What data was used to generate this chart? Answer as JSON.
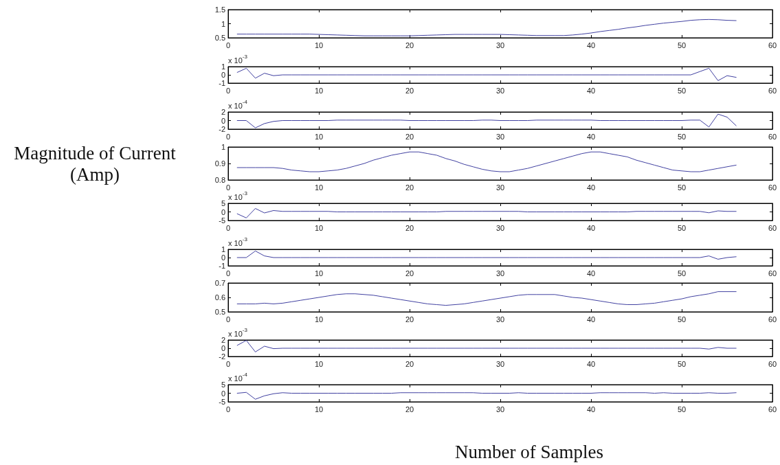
{
  "chart_data": [
    {
      "type": "line",
      "x": [
        1,
        2,
        3,
        4,
        5,
        6,
        7,
        8,
        9,
        10,
        11,
        12,
        13,
        14,
        15,
        16,
        17,
        18,
        19,
        20,
        21,
        22,
        23,
        24,
        25,
        26,
        27,
        28,
        29,
        30,
        31,
        32,
        33,
        34,
        35,
        36,
        37,
        38,
        39,
        40,
        41,
        42,
        43,
        44,
        45,
        46,
        47,
        48,
        49,
        50,
        51,
        52,
        53,
        54,
        55,
        56
      ],
      "values": [
        0.63,
        0.63,
        0.63,
        0.63,
        0.63,
        0.63,
        0.63,
        0.63,
        0.63,
        0.62,
        0.61,
        0.6,
        0.59,
        0.58,
        0.57,
        0.57,
        0.57,
        0.57,
        0.57,
        0.57,
        0.58,
        0.59,
        0.6,
        0.61,
        0.62,
        0.62,
        0.62,
        0.62,
        0.62,
        0.62,
        0.61,
        0.6,
        0.59,
        0.58,
        0.58,
        0.58,
        0.58,
        0.6,
        0.63,
        0.67,
        0.72,
        0.76,
        0.8,
        0.85,
        0.89,
        0.94,
        0.98,
        1.02,
        1.05,
        1.08,
        1.12,
        1.14,
        1.15,
        1.14,
        1.12,
        1.11
      ],
      "color": "#4040a0",
      "xlim": [
        0,
        60
      ],
      "xticks": [
        0,
        10,
        20,
        30,
        40,
        50,
        60
      ],
      "ylim": [
        0.5,
        1.5
      ],
      "yticks": [
        0.5,
        1,
        1.5
      ]
    },
    {
      "type": "line",
      "x": [
        1,
        2,
        3,
        4,
        5,
        6,
        7,
        8,
        9,
        10,
        11,
        12,
        13,
        14,
        15,
        16,
        17,
        18,
        19,
        20,
        21,
        22,
        23,
        24,
        25,
        26,
        27,
        28,
        29,
        30,
        31,
        32,
        33,
        34,
        35,
        36,
        37,
        38,
        39,
        40,
        41,
        42,
        43,
        44,
        45,
        46,
        47,
        48,
        49,
        50,
        51,
        52,
        53,
        54,
        55,
        56
      ],
      "values": [
        0.3,
        0.8,
        -0.4,
        0.2,
        -0.1,
        0,
        0,
        0,
        0,
        0,
        0,
        0,
        0,
        0,
        0,
        0,
        0,
        0,
        0,
        0,
        0,
        0,
        0,
        0,
        0,
        0,
        0,
        0,
        0,
        0,
        0,
        0,
        0,
        0,
        0,
        0,
        0,
        0,
        0,
        0,
        0,
        0,
        0,
        0,
        0,
        0,
        0,
        0,
        0,
        0,
        0,
        0.4,
        0.8,
        -0.7,
        -0.1,
        -0.3
      ],
      "color": "#4040a0",
      "xlim": [
        0,
        60
      ],
      "xticks": [
        0,
        10,
        20,
        30,
        40,
        50,
        60
      ],
      "ylim": [
        -1,
        1
      ],
      "yticks": [
        -1,
        0,
        1
      ],
      "annotations": [
        "x 10$^{-3}$"
      ]
    },
    {
      "type": "line",
      "x": [
        1,
        2,
        3,
        4,
        5,
        6,
        7,
        8,
        9,
        10,
        11,
        12,
        13,
        14,
        15,
        16,
        17,
        18,
        19,
        20,
        21,
        22,
        23,
        24,
        25,
        26,
        27,
        28,
        29,
        30,
        31,
        32,
        33,
        34,
        35,
        36,
        37,
        38,
        39,
        40,
        41,
        42,
        43,
        44,
        45,
        46,
        47,
        48,
        49,
        50,
        51,
        52,
        53,
        54,
        55,
        56
      ],
      "values": [
        0,
        0,
        -1.7,
        -0.7,
        -0.2,
        0,
        0,
        0,
        0,
        0,
        0,
        0.1,
        0.1,
        0.1,
        0.1,
        0.1,
        0.1,
        0.1,
        0.1,
        0,
        0,
        0,
        0,
        0,
        0,
        0,
        0,
        0.1,
        0.1,
        0,
        0,
        0,
        0,
        0.1,
        0.1,
        0.1,
        0.1,
        0.1,
        0.1,
        0.1,
        0,
        0,
        0,
        0,
        0,
        0,
        0,
        0,
        0,
        0,
        0.1,
        0.1,
        -1.5,
        1.5,
        0.8,
        -1.2
      ],
      "color": "#4040a0",
      "xlim": [
        0,
        60
      ],
      "xticks": [
        0,
        10,
        20,
        30,
        40,
        50,
        60
      ],
      "ylim": [
        -2,
        2
      ],
      "yticks": [
        -2,
        0,
        2
      ],
      "annotations": [
        "x 10$^{-4}$"
      ]
    },
    {
      "type": "line",
      "ylabel": "Magnitude of Current (Amp)",
      "x": [
        1,
        2,
        3,
        4,
        5,
        6,
        7,
        8,
        9,
        10,
        11,
        12,
        13,
        14,
        15,
        16,
        17,
        18,
        19,
        20,
        21,
        22,
        23,
        24,
        25,
        26,
        27,
        28,
        29,
        30,
        31,
        32,
        33,
        34,
        35,
        36,
        37,
        38,
        39,
        40,
        41,
        42,
        43,
        44,
        45,
        46,
        47,
        48,
        49,
        50,
        51,
        52,
        53,
        54,
        55,
        56
      ],
      "values": [
        0.875,
        0.875,
        0.875,
        0.875,
        0.875,
        0.87,
        0.86,
        0.855,
        0.85,
        0.85,
        0.855,
        0.86,
        0.87,
        0.885,
        0.9,
        0.92,
        0.935,
        0.95,
        0.96,
        0.97,
        0.97,
        0.96,
        0.95,
        0.93,
        0.915,
        0.895,
        0.88,
        0.865,
        0.855,
        0.85,
        0.85,
        0.86,
        0.87,
        0.885,
        0.9,
        0.915,
        0.93,
        0.945,
        0.96,
        0.97,
        0.97,
        0.96,
        0.95,
        0.94,
        0.92,
        0.905,
        0.89,
        0.875,
        0.86,
        0.855,
        0.85,
        0.85,
        0.86,
        0.87,
        0.88,
        0.89
      ],
      "color": "#4040a0",
      "xlim": [
        0,
        60
      ],
      "xticks": [
        0,
        10,
        20,
        30,
        40,
        50,
        60
      ],
      "ylim": [
        0.8,
        1
      ],
      "yticks": [
        0.8,
        0.9,
        1
      ]
    },
    {
      "type": "line",
      "x": [
        1,
        2,
        3,
        4,
        5,
        6,
        7,
        8,
        9,
        10,
        11,
        12,
        13,
        14,
        15,
        16,
        17,
        18,
        19,
        20,
        21,
        22,
        23,
        24,
        25,
        26,
        27,
        28,
        29,
        30,
        31,
        32,
        33,
        34,
        35,
        36,
        37,
        38,
        39,
        40,
        41,
        42,
        43,
        44,
        45,
        46,
        47,
        48,
        49,
        50,
        51,
        52,
        53,
        54,
        55,
        56
      ],
      "values": [
        -1.1,
        -3.5,
        2,
        -0.6,
        0.8,
        0.3,
        0.3,
        0.3,
        0.3,
        0.3,
        0.3,
        0,
        0,
        0,
        0,
        0,
        0,
        0,
        0,
        0,
        0,
        0,
        0,
        0.3,
        0.3,
        0.3,
        0.3,
        0.3,
        0.3,
        0.3,
        0.3,
        0.3,
        0,
        0,
        0,
        0,
        0,
        0,
        0,
        0,
        0,
        0,
        0,
        0,
        0.3,
        0.3,
        0.3,
        0.3,
        0.3,
        0.3,
        0.3,
        0.3,
        -0.5,
        0.6,
        0.3,
        0.3
      ],
      "color": "#4040a0",
      "xlim": [
        0,
        60
      ],
      "xticks": [
        0,
        10,
        20,
        30,
        40,
        50,
        60
      ],
      "ylim": [
        -5,
        5
      ],
      "yticks": [
        -5,
        0,
        5
      ],
      "annotations": [
        "x 10$^{-3}$"
      ]
    },
    {
      "type": "line",
      "x": [
        1,
        2,
        3,
        4,
        5,
        6,
        7,
        8,
        9,
        10,
        11,
        12,
        13,
        14,
        15,
        16,
        17,
        18,
        19,
        20,
        21,
        22,
        23,
        24,
        25,
        26,
        27,
        28,
        29,
        30,
        31,
        32,
        33,
        34,
        35,
        36,
        37,
        38,
        39,
        40,
        41,
        42,
        43,
        44,
        45,
        46,
        47,
        48,
        49,
        50,
        51,
        52,
        53,
        54,
        55,
        56
      ],
      "values": [
        0,
        0,
        0.8,
        0.2,
        0,
        0,
        0,
        0,
        0,
        0,
        0,
        0,
        0,
        0,
        0,
        0,
        0,
        0,
        0,
        0,
        0,
        0,
        0,
        0,
        0,
        0,
        0,
        0,
        0,
        0,
        0,
        0,
        0,
        0,
        0,
        0,
        0,
        0,
        0,
        0,
        0,
        0,
        0,
        0,
        0,
        0,
        0,
        0,
        0,
        0,
        0,
        0,
        0.2,
        -0.2,
        0,
        0.1
      ],
      "color": "#4040a0",
      "xlim": [
        0,
        60
      ],
      "xticks": [
        0,
        10,
        20,
        30,
        40,
        50,
        60
      ],
      "ylim": [
        -1,
        1
      ],
      "yticks": [
        -1,
        0,
        1
      ],
      "annotations": [
        "x 10$^{-3}$"
      ]
    },
    {
      "type": "line",
      "x": [
        1,
        2,
        3,
        4,
        5,
        6,
        7,
        8,
        9,
        10,
        11,
        12,
        13,
        14,
        15,
        16,
        17,
        18,
        19,
        20,
        21,
        22,
        23,
        24,
        25,
        26,
        27,
        28,
        29,
        30,
        31,
        32,
        33,
        34,
        35,
        36,
        37,
        38,
        39,
        40,
        41,
        42,
        43,
        44,
        45,
        46,
        47,
        48,
        49,
        50,
        51,
        52,
        53,
        54,
        55,
        56
      ],
      "values": [
        0.555,
        0.555,
        0.555,
        0.56,
        0.555,
        0.56,
        0.57,
        0.58,
        0.59,
        0.6,
        0.61,
        0.62,
        0.625,
        0.625,
        0.62,
        0.615,
        0.605,
        0.595,
        0.585,
        0.575,
        0.565,
        0.555,
        0.55,
        0.545,
        0.55,
        0.555,
        0.565,
        0.575,
        0.585,
        0.595,
        0.605,
        0.615,
        0.62,
        0.62,
        0.62,
        0.62,
        0.61,
        0.6,
        0.595,
        0.585,
        0.575,
        0.565,
        0.555,
        0.55,
        0.55,
        0.555,
        0.56,
        0.57,
        0.58,
        0.59,
        0.605,
        0.615,
        0.625,
        0.64,
        0.64,
        0.64
      ],
      "color": "#4040a0",
      "xlim": [
        0,
        60
      ],
      "xticks": [
        0,
        10,
        20,
        30,
        40,
        50,
        60
      ],
      "ylim": [
        0.5,
        0.7
      ],
      "yticks": [
        0.5,
        0.6,
        0.7
      ]
    },
    {
      "type": "line",
      "x": [
        1,
        2,
        3,
        4,
        5,
        6,
        7,
        8,
        9,
        10,
        11,
        12,
        13,
        14,
        15,
        16,
        17,
        18,
        19,
        20,
        21,
        22,
        23,
        24,
        25,
        26,
        27,
        28,
        29,
        30,
        31,
        32,
        33,
        34,
        35,
        36,
        37,
        38,
        39,
        40,
        41,
        42,
        43,
        44,
        45,
        46,
        47,
        48,
        49,
        50,
        51,
        52,
        53,
        54,
        55,
        56
      ],
      "values": [
        0.7,
        1.9,
        -0.9,
        0.5,
        -0.1,
        0,
        0,
        0,
        0,
        0,
        0,
        0,
        0,
        0,
        0,
        0,
        0,
        0,
        0,
        0,
        0,
        0,
        0,
        0,
        0,
        0,
        0,
        0,
        0,
        0,
        0,
        0,
        0,
        0,
        0,
        0,
        0,
        0,
        0,
        0,
        0,
        0,
        0,
        0,
        0,
        0,
        0,
        0,
        0,
        0,
        0,
        0,
        -0.2,
        0.2,
        0,
        0
      ],
      "color": "#4040a0",
      "xlim": [
        0,
        60
      ],
      "xticks": [
        0,
        10,
        20,
        30,
        40,
        50,
        60
      ],
      "ylim": [
        -2,
        2
      ],
      "yticks": [
        -2,
        0,
        2
      ],
      "annotations": [
        "x 10$^{-3}$"
      ]
    },
    {
      "type": "line",
      "xlabel": "Number of Samples",
      "x": [
        1,
        2,
        3,
        4,
        5,
        6,
        7,
        8,
        9,
        10,
        11,
        12,
        13,
        14,
        15,
        16,
        17,
        18,
        19,
        20,
        21,
        22,
        23,
        24,
        25,
        26,
        27,
        28,
        29,
        30,
        31,
        32,
        33,
        34,
        35,
        36,
        37,
        38,
        39,
        40,
        41,
        42,
        43,
        44,
        45,
        46,
        47,
        48,
        49,
        50,
        51,
        52,
        53,
        54,
        55,
        56
      ],
      "values": [
        0,
        0.5,
        -3.5,
        -1.5,
        -0.3,
        0.3,
        0,
        0,
        0,
        0,
        0,
        0,
        0,
        0,
        0,
        0,
        0,
        0,
        0.3,
        0.3,
        0.3,
        0.3,
        0.3,
        0.3,
        0.3,
        0.3,
        0.3,
        0,
        0,
        0,
        0,
        0.3,
        0,
        0,
        0,
        0,
        0,
        0,
        0,
        0,
        0.3,
        0.3,
        0.3,
        0.3,
        0.3,
        0.3,
        0,
        0.3,
        0,
        0,
        0,
        0,
        0.3,
        0,
        0,
        0.3
      ],
      "color": "#4040a0",
      "xlim": [
        0,
        60
      ],
      "xticks": [
        0,
        10,
        20,
        30,
        40,
        50,
        60
      ],
      "ylim": [
        -5,
        5
      ],
      "yticks": [
        -5,
        0,
        5
      ],
      "annotations": [
        "x 10$^{-4}$"
      ]
    }
  ]
}
